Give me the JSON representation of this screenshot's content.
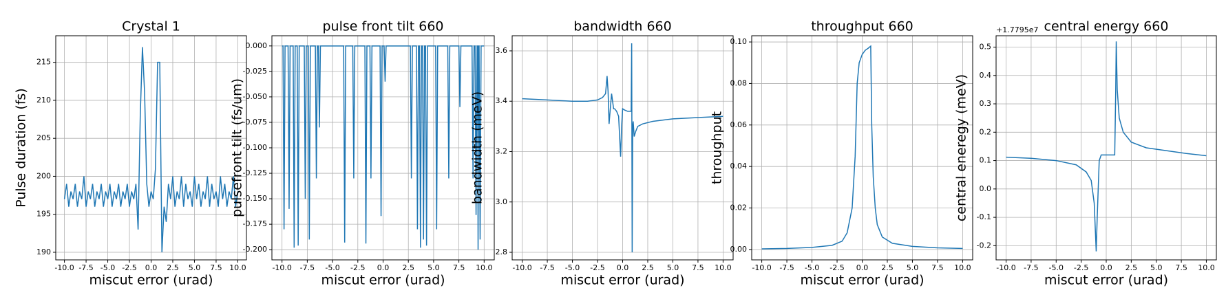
{
  "chart_data": [
    {
      "type": "line",
      "title": "Crystal 1",
      "xlabel": "miscut error (urad)",
      "ylabel": "Pulse duration (fs)",
      "color": "#1f77b4",
      "grid": true,
      "xlim": [
        -11,
        11
      ],
      "ylim": [
        189,
        218.5
      ],
      "xticks": [
        {
          "value": -10,
          "label": "-10.0"
        },
        -7.5,
        {
          "value": -5,
          "label": "-5.0"
        },
        -2.5,
        {
          "value": 0,
          "label": "0.0"
        },
        2.5,
        {
          "value": 5,
          "label": "5.0"
        },
        7.5,
        {
          "value": 10,
          "label": "10.0"
        }
      ],
      "yticks": [
        190,
        195,
        200,
        205,
        210,
        215
      ],
      "x": [
        -10,
        -9.75,
        -9.5,
        -9.25,
        -9,
        -8.75,
        -8.5,
        -8.25,
        -8,
        -7.75,
        -7.5,
        -7.25,
        -7,
        -6.75,
        -6.5,
        -6.25,
        -6,
        -5.75,
        -5.5,
        -5.25,
        -5,
        -4.75,
        -4.5,
        -4.25,
        -4,
        -3.75,
        -3.5,
        -3.25,
        -3,
        -2.75,
        -2.5,
        -2.25,
        -2,
        -1.75,
        -1.5,
        -1.25,
        -1,
        -0.75,
        -0.5,
        -0.25,
        0,
        0.25,
        0.5,
        0.75,
        1,
        1.25,
        1.5,
        1.75,
        2,
        2.25,
        2.5,
        2.75,
        3,
        3.25,
        3.5,
        3.75,
        4,
        4.25,
        4.5,
        4.75,
        5,
        5.25,
        5.5,
        5.75,
        6,
        6.25,
        6.5,
        6.75,
        7,
        7.25,
        7.5,
        7.75,
        8,
        8.25,
        8.5,
        8.75,
        9,
        9.25,
        9.5,
        9.75,
        10
      ],
      "values": [
        197,
        199,
        196,
        198,
        197,
        199,
        196,
        198,
        197,
        200,
        196,
        198,
        197,
        199,
        196,
        198,
        197,
        199,
        196,
        198,
        197,
        199,
        196,
        198,
        197,
        199,
        196,
        198,
        197,
        199,
        196,
        198,
        197,
        199,
        193,
        208,
        217,
        211,
        199,
        196,
        198,
        197,
        201,
        215,
        215,
        190,
        196,
        194,
        199,
        197,
        200,
        196,
        198,
        197,
        200,
        196,
        199,
        197,
        198,
        196,
        200,
        197,
        199,
        196,
        198,
        197,
        200,
        196,
        199,
        197,
        198,
        196,
        200,
        197,
        199,
        196,
        198,
        197,
        200,
        196,
        198
      ]
    },
    {
      "type": "line",
      "title": "pulse front tilt 660",
      "xlabel": "miscut error (urad)",
      "ylabel": "pulsefront tilt (fs/um)",
      "color": "#1f77b4",
      "grid": true,
      "xlim": [
        -11,
        11
      ],
      "ylim": [
        -0.21,
        0.01
      ],
      "xticks": [
        {
          "value": -10,
          "label": "-10.0"
        },
        -7.5,
        {
          "value": -5,
          "label": "-5.0"
        },
        -2.5,
        {
          "value": 0,
          "label": "0.0"
        },
        2.5,
        {
          "value": 5,
          "label": "5.0"
        },
        7.5,
        {
          "value": 10,
          "label": "10.0"
        }
      ],
      "yticks": [
        {
          "value": 0,
          "label": "0.000"
        },
        -0.025,
        {
          "value": -0.05,
          "label": "-0.050"
        },
        -0.075,
        {
          "value": -0.1,
          "label": "-0.100"
        },
        -0.125,
        {
          "value": -0.15,
          "label": "-0.150"
        },
        -0.175,
        {
          "value": -0.2,
          "label": "-0.200"
        }
      ],
      "x": [
        -10,
        -9.9,
        -9.8,
        -9.7,
        -9.4,
        -9.3,
        -9.2,
        -8.9,
        -8.8,
        -8.7,
        -8.5,
        -8.4,
        -8.3,
        -7.8,
        -7.7,
        -7.6,
        -7.4,
        -7.3,
        -7.2,
        -6.7,
        -6.6,
        -6.5,
        -6.4,
        -6.3,
        -6.2,
        -3.9,
        -3.8,
        -3.7,
        -3,
        -2.9,
        -2.8,
        -1.8,
        -1.7,
        -1.6,
        -1.3,
        -1.2,
        -1.1,
        -0.3,
        -0.2,
        -0.1,
        0.1,
        0.2,
        0.3,
        2.7,
        2.8,
        2.9,
        3.3,
        3.4,
        3.5,
        3.6,
        3.7,
        3.8,
        3.9,
        4,
        4.1,
        4.2,
        4.3,
        4.4,
        5.2,
        5.3,
        5.4,
        6.4,
        6.5,
        6.6,
        7.5,
        7.6,
        7.7,
        8.8,
        8.9,
        9,
        9.1,
        9.2,
        9.3,
        9.35,
        9.4,
        9.45,
        9.5,
        9.6,
        9.7,
        10
      ],
      "values": [
        0,
        0,
        -0.18,
        0,
        0,
        -0.16,
        0,
        0,
        -0.198,
        0,
        0,
        -0.196,
        0,
        0,
        -0.15,
        0,
        0,
        -0.19,
        0,
        0,
        -0.13,
        0,
        0,
        -0.08,
        0,
        0,
        -0.193,
        0,
        0,
        -0.13,
        0,
        0,
        -0.194,
        0,
        0,
        -0.13,
        0,
        0,
        -0.167,
        0,
        0,
        -0.035,
        0,
        0,
        -0.13,
        0,
        0,
        -0.18,
        0,
        0,
        -0.198,
        0,
        0,
        -0.19,
        0,
        0,
        -0.196,
        0,
        0,
        -0.18,
        0,
        0,
        -0.13,
        0,
        0,
        -0.06,
        0,
        0,
        -0.13,
        0,
        0,
        -0.166,
        0,
        0,
        -0.2,
        0,
        0,
        -0.19,
        0,
        0
      ]
    },
    {
      "type": "line",
      "title": "bandwidth 660",
      "xlabel": "miscut error (urad)",
      "ylabel": "bandwidth (meV)",
      "color": "#1f77b4",
      "grid": true,
      "xlim": [
        -11,
        11
      ],
      "ylim": [
        2.77,
        3.66
      ],
      "xticks": [
        {
          "value": -10,
          "label": "-10.0"
        },
        -7.5,
        {
          "value": -5,
          "label": "-5.0"
        },
        -2.5,
        {
          "value": 0,
          "label": "0.0"
        },
        2.5,
        {
          "value": 5,
          "label": "5.0"
        },
        7.5,
        {
          "value": 10,
          "label": "10.0"
        }
      ],
      "yticks": [
        2.8,
        {
          "value": 3,
          "label": "3.0"
        },
        3.2,
        3.4,
        3.6
      ],
      "x": [
        -10,
        -7.5,
        -5,
        -3.5,
        -2.5,
        -2,
        -1.7,
        -1.55,
        -1.45,
        -1.35,
        -1.25,
        -1.1,
        -0.9,
        -0.8,
        -0.6,
        -0.4,
        -0.2,
        -0.1,
        0,
        0.2,
        0.5,
        0.8,
        0.85,
        0.9,
        0.95,
        1.0,
        1.05,
        1.15,
        1.3,
        1.5,
        2,
        3,
        5,
        7.5,
        10
      ],
      "values": [
        3.41,
        3.405,
        3.4,
        3.4,
        3.405,
        3.415,
        3.43,
        3.5,
        3.44,
        3.31,
        3.36,
        3.43,
        3.37,
        3.37,
        3.36,
        3.34,
        3.18,
        3.3,
        3.37,
        3.365,
        3.36,
        3.36,
        3.36,
        3.63,
        2.8,
        3.3,
        3.32,
        3.26,
        3.28,
        3.3,
        3.31,
        3.32,
        3.33,
        3.335,
        3.34
      ]
    },
    {
      "type": "line",
      "title": "throughput 660",
      "xlabel": "miscut error (urad)",
      "ylabel": "throughput",
      "color": "#1f77b4",
      "grid": true,
      "xlim": [
        -11,
        11
      ],
      "ylim": [
        -0.005,
        0.103
      ],
      "xticks": [
        {
          "value": -10,
          "label": "-10.0"
        },
        -7.5,
        {
          "value": -5,
          "label": "-5.0"
        },
        -2.5,
        {
          "value": 0,
          "label": "0.0"
        },
        2.5,
        {
          "value": 5,
          "label": "5.0"
        },
        7.5,
        {
          "value": 10,
          "label": "10.0"
        }
      ],
      "yticks": [
        {
          "value": 0,
          "label": "0.00"
        },
        0.02,
        0.04,
        0.06,
        0.08,
        {
          "value": 0.1,
          "label": "0.10"
        }
      ],
      "x": [
        -10,
        -7.5,
        -5,
        -3,
        -2,
        -1.5,
        -1,
        -0.7,
        -0.5,
        -0.3,
        0,
        0.3,
        0.6,
        0.85,
        0.95,
        1.1,
        1.3,
        1.5,
        2,
        3,
        5,
        7.5,
        10
      ],
      "values": [
        0.0003,
        0.0005,
        0.001,
        0.002,
        0.004,
        0.008,
        0.02,
        0.045,
        0.08,
        0.09,
        0.094,
        0.096,
        0.097,
        0.098,
        0.06,
        0.035,
        0.02,
        0.012,
        0.006,
        0.003,
        0.0015,
        0.0008,
        0.0005
      ]
    },
    {
      "type": "line",
      "title": "central energy 660",
      "xlabel": "miscut error (urad)",
      "ylabel": "central eneregy (meV)",
      "y_offset_label": "+1.7795e7",
      "color": "#1f77b4",
      "grid": true,
      "xlim": [
        -11,
        11
      ],
      "ylim": [
        -0.25,
        0.54
      ],
      "xticks": [
        {
          "value": -10,
          "label": "-10.0"
        },
        -7.5,
        {
          "value": -5,
          "label": "-5.0"
        },
        -2.5,
        {
          "value": 0,
          "label": "0.0"
        },
        2.5,
        {
          "value": 5,
          "label": "5.0"
        },
        7.5,
        {
          "value": 10,
          "label": "10.0"
        }
      ],
      "yticks": [
        -0.2,
        -0.1,
        {
          "value": 0,
          "label": "0.0"
        },
        0.1,
        0.2,
        0.3,
        0.4,
        0.5
      ],
      "x": [
        -10,
        -7.5,
        -5,
        -3,
        -2,
        -1.5,
        -1.2,
        -1,
        -0.9,
        -0.7,
        -0.5,
        0.5,
        0.85,
        0.95,
        1,
        1.1,
        1.3,
        1.7,
        2.5,
        4,
        6,
        8,
        10
      ],
      "values": [
        0.112,
        0.108,
        0.1,
        0.085,
        0.06,
        0.03,
        -0.05,
        -0.22,
        -0.1,
        0.1,
        0.12,
        0.12,
        0.12,
        0.35,
        0.52,
        0.35,
        0.25,
        0.2,
        0.165,
        0.145,
        0.135,
        0.125,
        0.117
      ]
    }
  ]
}
